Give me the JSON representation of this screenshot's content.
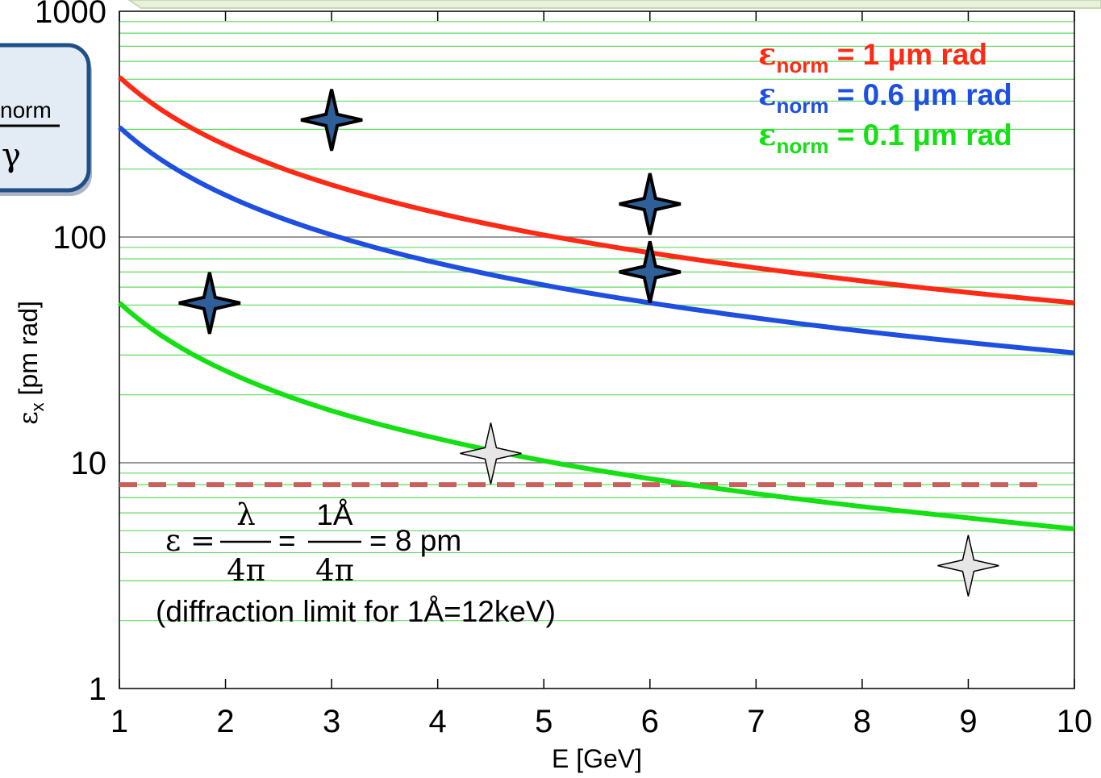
{
  "inset": {
    "subscript": "norm",
    "denominator": "γ"
  },
  "chart_data": {
    "type": "line",
    "xlabel": "E [GeV]",
    "ylabel_main": "ε",
    "ylabel_sub": "x",
    "ylabel_unit": " [pm rad]",
    "xlim": [
      1,
      10
    ],
    "ylim": [
      1,
      1000
    ],
    "yscale": "log",
    "x_ticks": [
      "1",
      "2",
      "3",
      "4",
      "5",
      "6",
      "7",
      "8",
      "9",
      "10"
    ],
    "y_ticks": [
      "1",
      "10",
      "100",
      "1000"
    ],
    "grid": "horizontal minor (green) and major (gray)",
    "x": [
      1,
      2,
      3,
      4,
      5,
      6,
      7,
      8,
      9,
      10
    ],
    "series": [
      {
        "legend_main": "ε",
        "legend_sub": "norm",
        "legend_rest": " = 1 μm rad",
        "color": "#ff2a16",
        "values": [
          511,
          255.5,
          170.3,
          127.75,
          102.2,
          85.2,
          73.0,
          63.9,
          56.8,
          51.1
        ]
      },
      {
        "legend_main": "ε",
        "legend_sub": "norm",
        "legend_rest": " = 0.6 μm rad",
        "color": "#1f4fe0",
        "values": [
          306.6,
          153.3,
          102.2,
          76.65,
          61.3,
          51.1,
          43.8,
          38.3,
          34.1,
          30.7
        ]
      },
      {
        "legend_main": "ε",
        "legend_sub": "norm",
        "legend_rest": " = 0.1 μm rad",
        "color": "#14e014",
        "values": [
          51.1,
          25.55,
          17.0,
          12.8,
          10.2,
          8.5,
          7.3,
          6.4,
          5.7,
          5.1
        ]
      }
    ],
    "reference_line": {
      "y": 8,
      "color": "#c9605c",
      "style": "dashed"
    },
    "markers": [
      {
        "x": 1.85,
        "y": 51,
        "style": "dark"
      },
      {
        "x": 3.0,
        "y": 330,
        "style": "dark"
      },
      {
        "x": 6.0,
        "y": 140,
        "style": "dark"
      },
      {
        "x": 6.0,
        "y": 70,
        "style": "dark"
      },
      {
        "x": 4.5,
        "y": 11,
        "style": "light"
      },
      {
        "x": 9.0,
        "y": 3.5,
        "style": "light"
      }
    ],
    "annotation": {
      "lhs": "ε =",
      "frac1_num": "λ",
      "frac1_den": "4π",
      "eq": "=",
      "frac2_num": "1Å",
      "frac2_den": "4π",
      "rhs": "= 8 pm",
      "note": "(diffraction limit for 1Å=12keV)"
    }
  }
}
